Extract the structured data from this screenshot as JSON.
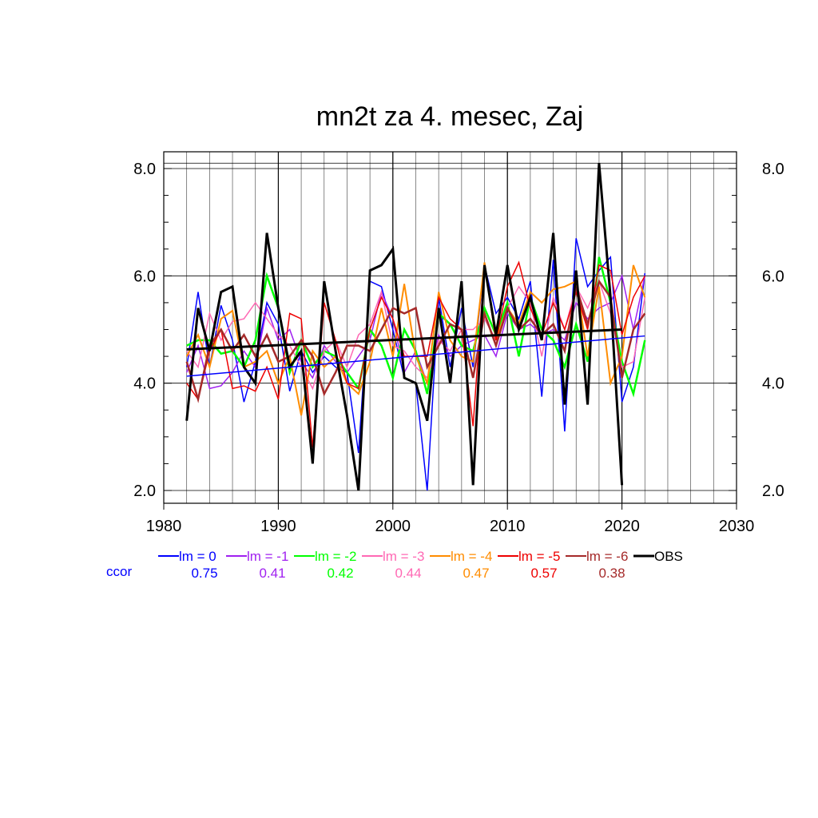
{
  "chart_data": {
    "type": "line",
    "title": "mn2t za 4. mesec, Zaj",
    "xlabel": "",
    "ylabel": "",
    "xlim": [
      1980,
      2030
    ],
    "ylim": [
      2.0,
      8.1
    ],
    "x_ticks": [
      1980,
      1990,
      2000,
      2010,
      2020,
      2030
    ],
    "x_tick_labels": [
      "1980",
      "1990",
      "2000",
      "2010",
      "2020",
      "2030"
    ],
    "y_ticks": [
      2.0,
      4.0,
      6.0,
      8.0
    ],
    "y_tick_labels": [
      "2.0",
      "4.0",
      "6.0",
      "8.0"
    ],
    "y_tick_labels_right": [
      "2.0",
      "4.0",
      "6.0",
      "8.0"
    ],
    "grid": true,
    "legend_position": "bottom",
    "ccor_label": "ccor",
    "series": [
      {
        "name": "lm = 0",
        "color": "#0000ff",
        "width": 1.5,
        "ccor": "0.75",
        "x": [
          1982,
          1983,
          1984,
          1985,
          1986,
          1987,
          1988,
          1989,
          1990,
          1991,
          1992,
          1993,
          1994,
          1995,
          1996,
          1997,
          1998,
          1999,
          2000,
          2001,
          2002,
          2003,
          2004,
          2005,
          2006,
          2007,
          2008,
          2009,
          2010,
          2011,
          2012,
          2013,
          2014,
          2015,
          2016,
          2017,
          2018,
          2019,
          2020,
          2021,
          2022
        ],
        "y": [
          4.3,
          5.7,
          4.3,
          5.45,
          4.8,
          3.65,
          4.4,
          5.5,
          5.1,
          3.85,
          4.6,
          4.2,
          4.5,
          4.3,
          4.2,
          2.7,
          5.9,
          5.8,
          5.0,
          4.1,
          4.0,
          2.0,
          5.6,
          4.3,
          5.4,
          4.3,
          6.2,
          5.3,
          5.6,
          5.2,
          5.9,
          3.75,
          6.3,
          3.1,
          6.7,
          5.8,
          6.1,
          6.35,
          3.65,
          4.3,
          6.05
        ],
        "trend": [
          4.13,
          4.88
        ]
      },
      {
        "name": "lm = -1",
        "color": "#a020f0",
        "width": 1.5,
        "ccor": "0.41",
        "x": [
          1982,
          1983,
          1984,
          1985,
          1986,
          1987,
          1988,
          1989,
          1990,
          1991,
          1992,
          1993,
          1994,
          1995,
          1996,
          1997,
          1998,
          1999,
          2000,
          2001,
          2002,
          2003,
          2004,
          2005,
          2006,
          2007,
          2008,
          2009,
          2010,
          2011,
          2012,
          2013,
          2014,
          2015,
          2016,
          2017,
          2018,
          2019,
          2020,
          2021,
          2022
        ],
        "y": [
          4.2,
          4.7,
          3.9,
          3.95,
          4.2,
          4.6,
          4.3,
          5.4,
          4.8,
          5.0,
          4.4,
          4.1,
          4.7,
          4.4,
          4.2,
          4.5,
          4.8,
          5.7,
          5.2,
          4.2,
          4.6,
          4.0,
          4.9,
          4.5,
          4.7,
          4.8,
          4.9,
          4.5,
          5.3,
          5.0,
          5.1,
          4.9,
          5.0,
          4.8,
          5.5,
          5.2,
          5.4,
          5.5,
          6.0,
          5.0,
          6.0
        ]
      },
      {
        "name": "lm = -2",
        "color": "#00ff00",
        "width": 2.5,
        "ccor": "0.42",
        "x": [
          1982,
          1983,
          1984,
          1985,
          1986,
          1987,
          1988,
          1989,
          1990,
          1991,
          1992,
          1993,
          1994,
          1995,
          1996,
          1997,
          1998,
          1999,
          2000,
          2001,
          2002,
          2003,
          2004,
          2005,
          2006,
          2007,
          2008,
          2009,
          2010,
          2011,
          2012,
          2013,
          2014,
          2015,
          2016,
          2017,
          2018,
          2019,
          2020,
          2021,
          2022
        ],
        "y": [
          4.7,
          4.8,
          4.8,
          4.55,
          4.6,
          4.3,
          4.8,
          6.0,
          5.4,
          4.2,
          4.8,
          4.3,
          4.6,
          4.5,
          4.2,
          3.9,
          5.0,
          4.7,
          4.1,
          5.0,
          4.6,
          3.8,
          5.3,
          5.1,
          4.7,
          4.6,
          5.4,
          4.9,
          5.5,
          4.5,
          5.6,
          5.0,
          4.8,
          4.3,
          5.1,
          4.4,
          6.35,
          5.5,
          4.4,
          3.8,
          4.8
        ]
      },
      {
        "name": "lm = -3",
        "color": "#ff69b4",
        "width": 1.5,
        "ccor": "0.44",
        "x": [
          1982,
          1983,
          1984,
          1985,
          1986,
          1987,
          1988,
          1989,
          1990,
          1991,
          1992,
          1993,
          1994,
          1995,
          1996,
          1997,
          1998,
          1999,
          2000,
          2001,
          2002,
          2003,
          2004,
          2005,
          2006,
          2007,
          2008,
          2009,
          2010,
          2011,
          2012,
          2013,
          2014,
          2015,
          2016,
          2017,
          2018,
          2019,
          2020,
          2021,
          2022
        ],
        "y": [
          4.6,
          4.3,
          5.3,
          4.8,
          5.15,
          5.2,
          5.5,
          5.2,
          4.9,
          4.7,
          4.3,
          3.9,
          4.6,
          4.8,
          4.3,
          4.9,
          5.1,
          5.7,
          4.7,
          4.6,
          4.3,
          4.1,
          4.8,
          4.6,
          5.0,
          5.0,
          5.2,
          4.8,
          5.4,
          5.8,
          5.5,
          4.5,
          5.6,
          5.0,
          5.8,
          5.4,
          5.9,
          5.3,
          4.3,
          4.4,
          5.6
        ]
      },
      {
        "name": "lm = -4",
        "color": "#ff8c00",
        "width": 2.0,
        "ccor": "0.47",
        "x": [
          1982,
          1983,
          1984,
          1985,
          1986,
          1987,
          1988,
          1989,
          1990,
          1991,
          1992,
          1993,
          1994,
          1995,
          1996,
          1997,
          1998,
          1999,
          2000,
          2001,
          2002,
          2003,
          2004,
          2005,
          2006,
          2007,
          2008,
          2009,
          2010,
          2011,
          2012,
          2013,
          2014,
          2015,
          2016,
          2017,
          2018,
          2019,
          2020,
          2021,
          2022
        ],
        "y": [
          4.5,
          4.9,
          4.3,
          5.2,
          5.35,
          4.3,
          4.4,
          4.6,
          4.0,
          4.5,
          3.4,
          4.6,
          4.3,
          4.5,
          4.0,
          3.8,
          4.4,
          5.4,
          4.5,
          5.85,
          4.5,
          4.0,
          5.7,
          4.8,
          4.5,
          4.4,
          6.25,
          4.8,
          5.4,
          5.1,
          5.7,
          5.5,
          5.75,
          5.8,
          5.9,
          4.5,
          5.8,
          4.0,
          4.5,
          6.2,
          5.6
        ]
      },
      {
        "name": "lm = -5",
        "color": "#ee0000",
        "width": 1.5,
        "ccor": "0.57",
        "x": [
          1982,
          1983,
          1984,
          1985,
          1986,
          1987,
          1988,
          1989,
          1990,
          1991,
          1992,
          1993,
          1994,
          1995,
          1996,
          1997,
          1998,
          1999,
          2000,
          2001,
          2002,
          2003,
          2004,
          2005,
          2006,
          2007,
          2008,
          2009,
          2010,
          2011,
          2012,
          2013,
          2014,
          2015,
          2016,
          2017,
          2018,
          2019,
          2020,
          2021,
          2022
        ],
        "y": [
          4.0,
          3.7,
          4.6,
          5.0,
          3.9,
          3.95,
          3.85,
          4.3,
          3.7,
          5.3,
          5.2,
          2.8,
          5.5,
          4.8,
          4.0,
          3.9,
          5.0,
          5.6,
          5.2,
          4.5,
          4.5,
          4.5,
          5.6,
          5.2,
          5.0,
          3.2,
          6.2,
          4.8,
          5.8,
          6.25,
          5.4,
          4.9,
          5.5,
          5.0,
          5.7,
          5.0,
          6.2,
          6.1,
          4.9,
          5.6,
          6.0
        ]
      },
      {
        "name": "lm = -6",
        "color": "#a52a2a",
        "width": 2.5,
        "ccor": "0.38",
        "x": [
          1982,
          1983,
          1984,
          1985,
          1986,
          1987,
          1988,
          1989,
          1990,
          1991,
          1992,
          1993,
          1994,
          1995,
          1996,
          1997,
          1998,
          1999,
          2000,
          2001,
          2002,
          2003,
          2004,
          2005,
          2006,
          2007,
          2008,
          2009,
          2010,
          2011,
          2012,
          2013,
          2014,
          2015,
          2016,
          2017,
          2018,
          2019,
          2020,
          2021,
          2022
        ],
        "y": [
          4.4,
          3.7,
          4.7,
          5.0,
          4.6,
          4.9,
          4.5,
          4.9,
          4.4,
          4.5,
          4.8,
          4.5,
          3.8,
          4.2,
          4.7,
          4.7,
          4.6,
          5.0,
          5.4,
          5.3,
          5.4,
          4.3,
          4.7,
          5.1,
          5.0,
          4.1,
          5.3,
          4.7,
          5.4,
          5.0,
          5.2,
          4.9,
          5.1,
          4.6,
          5.8,
          5.1,
          5.9,
          5.6,
          4.1,
          5.0,
          5.3
        ]
      },
      {
        "name": "OBS",
        "color": "#000000",
        "width": 3.0,
        "ccor": "",
        "x": [
          1982,
          1983,
          1984,
          1985,
          1986,
          1987,
          1988,
          1989,
          1990,
          1991,
          1992,
          1993,
          1994,
          1995,
          1996,
          1997,
          1998,
          1999,
          2000,
          2001,
          2002,
          2003,
          2004,
          2005,
          2006,
          2007,
          2008,
          2009,
          2010,
          2011,
          2012,
          2013,
          2014,
          2015,
          2016,
          2017,
          2018,
          2019,
          2020
        ],
        "y": [
          3.3,
          5.4,
          4.6,
          5.7,
          5.8,
          4.3,
          4.0,
          6.8,
          5.4,
          4.3,
          4.6,
          2.5,
          5.9,
          4.6,
          3.4,
          2.0,
          6.1,
          6.2,
          6.5,
          4.1,
          4.0,
          3.3,
          5.4,
          4.0,
          5.9,
          2.1,
          6.2,
          4.9,
          6.2,
          5.0,
          5.6,
          4.8,
          6.8,
          3.6,
          6.1,
          3.6,
          8.1,
          5.6,
          2.1
        ],
        "trend": [
          4.63,
          5.0
        ]
      }
    ]
  }
}
